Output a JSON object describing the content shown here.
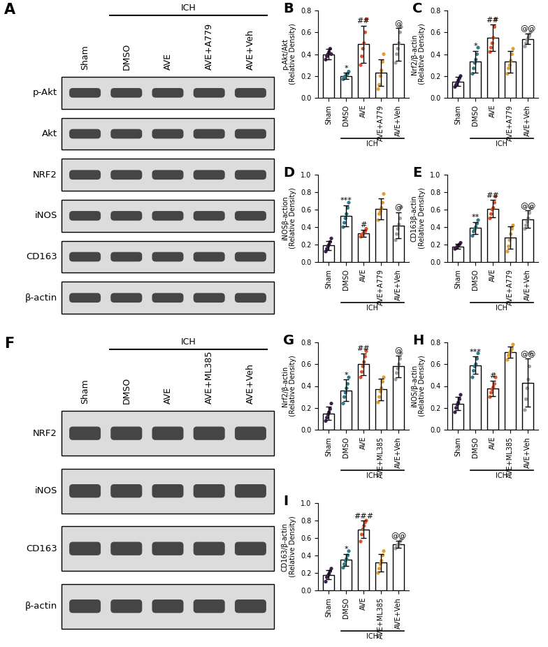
{
  "chart_data": [
    {
      "type": "bar",
      "panel_label": "B",
      "ylabel": "p-Akt/Akt\n(Relative Density)",
      "categories": [
        "Sham",
        "DMSO",
        "AVE",
        "AVE+A779",
        "AVE+Veh"
      ],
      "values": [
        0.4,
        0.2,
        0.49,
        0.23,
        0.49
      ],
      "errors": [
        0.05,
        0.03,
        0.17,
        0.12,
        0.15
      ],
      "points": [
        [
          0.35,
          0.38,
          0.4,
          0.42,
          0.45,
          0.4
        ],
        [
          0.17,
          0.19,
          0.2,
          0.21,
          0.22,
          0.24
        ],
        [
          0.3,
          0.38,
          0.45,
          0.5,
          0.6,
          0.72
        ],
        [
          0.08,
          0.12,
          0.2,
          0.25,
          0.33,
          0.4
        ],
        [
          0.32,
          0.4,
          0.45,
          0.5,
          0.6,
          0.65
        ]
      ],
      "colors": [
        "#3d1f4e",
        "#2e7e8a",
        "#e0522a",
        "#e0a030",
        "#a0a0a0"
      ],
      "significance": [
        null,
        "*",
        "##",
        null,
        "@"
      ],
      "group_label": "ICH",
      "group_categories": [
        "DMSO",
        "AVE",
        "AVE+A779",
        "AVE+Veh"
      ],
      "ylim": [
        0,
        0.8
      ],
      "yticks": [
        {
          "value": 0,
          "label": "0.0"
        },
        0.2,
        0.4,
        0.6,
        0.8
      ]
    },
    {
      "type": "bar",
      "panel_label": "C",
      "ylabel": "Nrf2/β-actin\n(Relative Density)",
      "categories": [
        "Sham",
        "DMSO",
        "AVE",
        "AVE+A779",
        "AVE+Veh"
      ],
      "values": [
        0.15,
        0.33,
        0.55,
        0.33,
        0.54
      ],
      "errors": [
        0.04,
        0.1,
        0.12,
        0.1,
        0.05
      ],
      "points": [
        [
          0.1,
          0.12,
          0.14,
          0.16,
          0.18,
          0.2
        ],
        [
          0.22,
          0.27,
          0.32,
          0.35,
          0.4,
          0.46
        ],
        [
          0.42,
          0.46,
          0.5,
          0.55,
          0.65,
          0.72
        ],
        [
          0.22,
          0.27,
          0.3,
          0.34,
          0.4,
          0.45
        ],
        [
          0.47,
          0.5,
          0.53,
          0.55,
          0.57,
          0.6
        ]
      ],
      "colors": [
        "#3d1f4e",
        "#2e7e8a",
        "#e0522a",
        "#e0a030",
        "#a0a0a0"
      ],
      "significance": [
        null,
        "*",
        "##",
        null,
        "@@"
      ],
      "group_label": "ICH",
      "group_categories": [
        "DMSO",
        "AVE",
        "AVE+A779",
        "AVE+Veh"
      ],
      "ylim": [
        0,
        0.8
      ],
      "yticks": [
        {
          "value": 0,
          "label": "0.0"
        },
        0.2,
        0.4,
        0.6,
        0.8
      ]
    },
    {
      "type": "bar",
      "panel_label": "D",
      "ylabel": "iNOSβ-action\n(Relative Density)",
      "categories": [
        "Sham",
        "DMSO",
        "AVE",
        "AVE+A779",
        "AVE+Veh"
      ],
      "values": [
        0.19,
        0.53,
        0.33,
        0.61,
        0.42
      ],
      "errors": [
        0.05,
        0.12,
        0.04,
        0.12,
        0.15
      ],
      "points": [
        [
          0.12,
          0.15,
          0.18,
          0.2,
          0.23,
          0.27
        ],
        [
          0.4,
          0.45,
          0.5,
          0.55,
          0.62,
          0.68
        ],
        [
          0.29,
          0.31,
          0.32,
          0.34,
          0.35,
          0.38
        ],
        [
          0.48,
          0.55,
          0.58,
          0.62,
          0.68,
          0.78
        ],
        [
          0.25,
          0.32,
          0.38,
          0.43,
          0.5,
          0.63
        ]
      ],
      "colors": [
        "#3d1f4e",
        "#2e7e8a",
        "#e0522a",
        "#e0a030",
        "#a0a0a0"
      ],
      "significance": [
        null,
        "***",
        "#",
        null,
        "@"
      ],
      "group_label": "ICH",
      "group_categories": [
        "DMSO",
        "AVE",
        "AVE+A779",
        "AVE+Veh"
      ],
      "ylim": [
        0,
        1.0
      ],
      "yticks": [
        {
          "value": 0,
          "label": "0.0"
        },
        0.2,
        0.4,
        0.6,
        0.8,
        {
          "value": 1,
          "label": "1.0"
        }
      ]
    },
    {
      "type": "bar",
      "panel_label": "E",
      "ylabel": "CD163β-actin\n(Relative Density)",
      "categories": [
        "Sham",
        "DMSO",
        "AVE",
        "AVE+A779",
        "AVE+Veh"
      ],
      "values": [
        0.18,
        0.39,
        0.61,
        0.28,
        0.49
      ],
      "errors": [
        0.03,
        0.07,
        0.1,
        0.13,
        0.1
      ],
      "points": [
        [
          0.15,
          0.16,
          0.18,
          0.19,
          0.2,
          0.22
        ],
        [
          0.3,
          0.35,
          0.38,
          0.4,
          0.44,
          0.48
        ],
        [
          0.5,
          0.55,
          0.6,
          0.62,
          0.68,
          0.75
        ],
        [
          0.12,
          0.18,
          0.25,
          0.32,
          0.38,
          0.42
        ],
        [
          0.38,
          0.42,
          0.46,
          0.5,
          0.56,
          0.62
        ]
      ],
      "colors": [
        "#3d1f4e",
        "#2e7e8a",
        "#e0522a",
        "#e0a030",
        "#a0a0a0"
      ],
      "significance": [
        null,
        "**",
        "##",
        null,
        "@@"
      ],
      "group_label": "ICH",
      "group_categories": [
        "DMSO",
        "AVE",
        "AVE+A779",
        "AVE+Veh"
      ],
      "ylim": [
        0,
        1.0
      ],
      "yticks": [
        {
          "value": 0,
          "label": "0.0"
        },
        0.2,
        0.4,
        0.6,
        0.8,
        {
          "value": 1,
          "label": "1.0"
        }
      ]
    },
    {
      "type": "bar",
      "panel_label": "G",
      "ylabel": "Nrf2/β-actin\n(Relative Density)",
      "categories": [
        "Sham",
        "DMSO",
        "AVE",
        "AVE+ML385",
        "AVE+Veh"
      ],
      "values": [
        0.15,
        0.36,
        0.6,
        0.37,
        0.58
      ],
      "errors": [
        0.06,
        0.1,
        0.1,
        0.1,
        0.1
      ],
      "points": [
        [
          0.08,
          0.11,
          0.14,
          0.16,
          0.19,
          0.24
        ],
        [
          0.24,
          0.3,
          0.34,
          0.38,
          0.42,
          0.48
        ],
        [
          0.48,
          0.53,
          0.58,
          0.62,
          0.67,
          0.72
        ],
        [
          0.25,
          0.3,
          0.35,
          0.38,
          0.44,
          0.48
        ],
        [
          0.46,
          0.52,
          0.56,
          0.6,
          0.65,
          0.7
        ]
      ],
      "colors": [
        "#3d1f4e",
        "#2e7e8a",
        "#e0522a",
        "#e0a030",
        "#a0a0a0"
      ],
      "significance": [
        null,
        "*",
        "##",
        null,
        "@"
      ],
      "group_label": "ICH",
      "group_categories": [
        "DMSO",
        "AVE",
        "AVE+ML385",
        "AVE+Veh"
      ],
      "ylim": [
        0,
        0.8
      ],
      "yticks": [
        {
          "value": 0,
          "label": "0.0"
        },
        0.2,
        0.4,
        0.6,
        0.8
      ]
    },
    {
      "type": "bar",
      "panel_label": "H",
      "ylabel": "iNOS/β-actin\n(Relative Density)",
      "categories": [
        "Sham",
        "DMSO",
        "AVE",
        "AVE+ML385",
        "AVE+Veh"
      ],
      "values": [
        0.24,
        0.59,
        0.38,
        0.71,
        0.43
      ],
      "errors": [
        0.06,
        0.08,
        0.07,
        0.05,
        0.22
      ],
      "points": [
        [
          0.16,
          0.2,
          0.23,
          0.25,
          0.28,
          0.32
        ],
        [
          0.48,
          0.54,
          0.58,
          0.6,
          0.65,
          0.7
        ],
        [
          0.3,
          0.34,
          0.37,
          0.39,
          0.42,
          0.48
        ],
        [
          0.64,
          0.68,
          0.7,
          0.72,
          0.74,
          0.78
        ],
        [
          0.18,
          0.28,
          0.38,
          0.46,
          0.58,
          0.7
        ]
      ],
      "colors": [
        "#3d1f4e",
        "#2e7e8a",
        "#e0522a",
        "#e0a030",
        "#a0a0a0"
      ],
      "significance": [
        null,
        "***",
        "#",
        null,
        "@@"
      ],
      "group_label": "ICH",
      "group_categories": [
        "DMSO",
        "AVE",
        "AVE+ML385",
        "AVE+Veh"
      ],
      "ylim": [
        0,
        0.8
      ],
      "yticks": [
        {
          "value": 0,
          "label": "0.0"
        },
        0.2,
        0.4,
        0.6,
        0.8
      ]
    },
    {
      "type": "bar",
      "panel_label": "I",
      "ylabel": "CD163/β-actin\n(Relative Density)",
      "categories": [
        "Sham",
        "DMSO",
        "AVE",
        "AVE+ML385",
        "AVE+Veh"
      ],
      "values": [
        0.18,
        0.35,
        0.7,
        0.32,
        0.53
      ],
      "errors": [
        0.05,
        0.07,
        0.1,
        0.1,
        0.04
      ],
      "points": [
        [
          0.1,
          0.15,
          0.17,
          0.19,
          0.22,
          0.25
        ],
        [
          0.26,
          0.3,
          0.34,
          0.36,
          0.4,
          0.45
        ],
        [
          0.56,
          0.64,
          0.7,
          0.74,
          0.78,
          0.8
        ],
        [
          0.2,
          0.25,
          0.3,
          0.34,
          0.4,
          0.45
        ],
        [
          0.48,
          0.5,
          0.52,
          0.54,
          0.56,
          0.58
        ]
      ],
      "colors": [
        "#3d1f4e",
        "#2e7e8a",
        "#e0522a",
        "#e0a030",
        "#a0a0a0"
      ],
      "significance": [
        null,
        "*",
        "###",
        null,
        "@@"
      ],
      "group_label": "ICH",
      "group_categories": [
        "DMSO",
        "AVE",
        "AVE+ML385",
        "AVE+Veh"
      ],
      "ylim": [
        0,
        1.0
      ],
      "yticks": [
        {
          "value": 0,
          "label": "0.0"
        },
        0.2,
        0.4,
        0.6,
        0.8,
        {
          "value": 1,
          "label": "1.0"
        }
      ]
    }
  ],
  "blots": [
    {
      "panel_label": "A",
      "group_label": "ICH",
      "lanes": [
        "Sham",
        "DMSO",
        "AVE",
        "AVE+A779",
        "AVE+Veh"
      ],
      "group_lanes": [
        "DMSO",
        "AVE",
        "AVE+A779",
        "AVE+Veh"
      ],
      "rows": [
        "p-Akt",
        "Akt",
        "NRF2",
        "iNOS",
        "CD163",
        "β-actin"
      ]
    },
    {
      "panel_label": "F",
      "group_label": "ICH",
      "lanes": [
        "Sham",
        "DMSO",
        "AVE",
        "AVE+ML385",
        "AVE+Veh"
      ],
      "group_lanes": [
        "DMSO",
        "AVE",
        "AVE+ML385",
        "AVE+Veh"
      ],
      "rows": [
        "NRF2",
        "iNOS",
        "CD163",
        "β-actin"
      ]
    }
  ]
}
